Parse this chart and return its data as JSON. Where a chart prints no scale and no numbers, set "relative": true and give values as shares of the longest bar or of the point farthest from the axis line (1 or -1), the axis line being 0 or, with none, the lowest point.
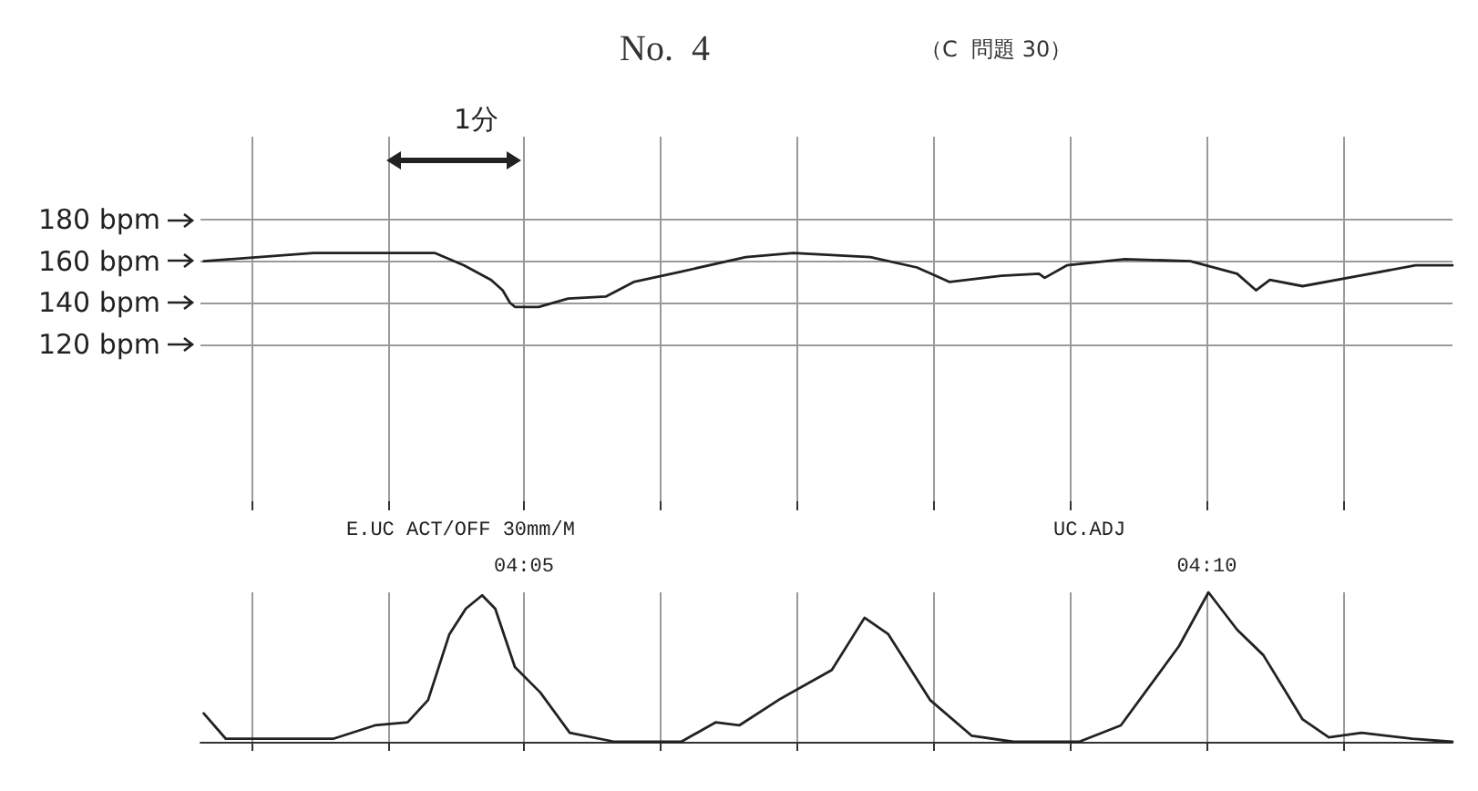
{
  "chart_data": [
    {
      "type": "line",
      "title": "No.  4",
      "subtitle": "（C  問題 30）",
      "annotations": [
        "1分"
      ],
      "x": [
        4.0442,
        4.0576,
        4.0724,
        4.076,
        4.0793,
        4.0807,
        4.0816,
        4.0822,
        4.0851,
        4.0887,
        4.0933,
        4.0967,
        4.1025,
        4.1104,
        4.1162,
        4.1256,
        4.1313,
        4.1353,
        4.1416,
        4.1462,
        4.1469,
        4.1496,
        4.1567,
        4.1647,
        4.1704,
        4.1727,
        4.1744,
        4.1784,
        4.1853,
        4.1922,
        4.1967
      ],
      "series": [
        {
          "color": "#222222",
          "values": [
            160,
            164,
            164,
            158,
            151,
            146,
            140,
            138,
            138,
            142,
            143,
            150,
            155,
            162,
            164,
            162,
            157,
            150,
            153,
            154,
            152,
            158,
            161,
            160,
            154,
            146,
            151,
            148,
            153,
            158,
            158
          ]
        }
      ],
      "xlim": [
        4.0438,
        4.1967
      ],
      "xticks": [
        {
          "value": 4.05,
          "label": null
        },
        {
          "value": 4.0667,
          "label": null
        },
        {
          "value": 4.0833,
          "label": null
        },
        {
          "value": 4.1,
          "label": null
        },
        {
          "value": 4.1167,
          "label": null
        },
        {
          "value": 4.1333,
          "label": null
        },
        {
          "value": 4.15,
          "label": null
        },
        {
          "value": 4.1667,
          "label": null
        },
        {
          "value": 4.1833,
          "label": null
        }
      ],
      "ylim": [
        40,
        220
      ],
      "yticks": [
        {
          "value": 120,
          "label": "120 bpm"
        },
        {
          "value": 140,
          "label": "140 bpm"
        },
        {
          "value": 160,
          "label": "160 bpm"
        },
        {
          "value": 180,
          "label": "180 bpm"
        }
      ],
      "tick_labels": "y",
      "grid": true
    },
    {
      "type": "line",
      "relative": true,
      "annotations": [
        "E.UC ACT/OFF 30mm/M",
        "UC.ADJ"
      ],
      "x": [
        4.0442,
        4.0469,
        4.06,
        4.0651,
        4.0691,
        4.0716,
        4.0742,
        4.0762,
        4.0782,
        4.0798,
        4.0822,
        4.0853,
        4.0889,
        4.0944,
        4.1025,
        4.1067,
        4.1096,
        4.1147,
        4.1209,
        4.1249,
        4.1278,
        4.1329,
        4.138,
        4.1431,
        4.1511,
        4.1562,
        4.1633,
        4.1669,
        4.1704,
        4.1736,
        4.1784,
        4.1816,
        4.1856,
        4.1918,
        4.1967
      ],
      "series": [
        {
          "color": "#222222",
          "values": [
            0.19,
            0.02,
            0.02,
            0.11,
            0.13,
            0.28,
            0.72,
            0.89,
            0.98,
            0.89,
            0.5,
            0.33,
            0.06,
            0,
            0,
            0.13,
            0.11,
            0.29,
            0.48,
            0.83,
            0.72,
            0.28,
            0.04,
            0,
            0,
            0.11,
            0.64,
            1,
            0.75,
            0.58,
            0.15,
            0.03,
            0.06,
            0.02,
            0
          ]
        }
      ],
      "xlim": [
        4.0438,
        4.1967
      ],
      "xticks": [
        {
          "value": 4.05,
          "label": null
        },
        {
          "value": 4.0667,
          "label": null
        },
        {
          "value": 4.0833,
          "label": "04:05"
        },
        {
          "value": 4.1,
          "label": null
        },
        {
          "value": 4.1167,
          "label": null
        },
        {
          "value": 4.1333,
          "label": null
        },
        {
          "value": 4.15,
          "label": null
        },
        {
          "value": 4.1667,
          "label": "04:10"
        },
        {
          "value": 4.1833,
          "label": null
        }
      ],
      "tick_labels": "x",
      "grid": "x"
    }
  ]
}
